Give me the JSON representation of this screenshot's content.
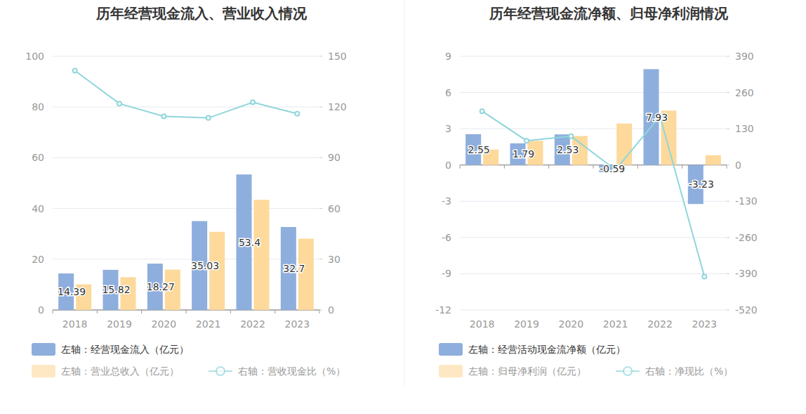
{
  "chart_data": [
    {
      "type": "bar",
      "title": "历年经营现金流入、营业收入情况",
      "categories": [
        "2018",
        "2019",
        "2020",
        "2021",
        "2022",
        "2023"
      ],
      "series": [
        {
          "name": "左轴：经营现金流入（亿元）",
          "color": "#8eaedd",
          "values": [
            14.39,
            15.82,
            18.27,
            35.03,
            53.4,
            32.7
          ],
          "data_labels": true
        },
        {
          "name": "左轴：营业总收入（亿元）",
          "color": "#fdd99b",
          "values": [
            10.1,
            12.9,
            15.9,
            30.8,
            43.4,
            28.1
          ]
        },
        {
          "name": "右轴：营收现金比（%）",
          "type": "line",
          "axis": "y2",
          "color": "#8fd6dc",
          "marker": "circle",
          "values": [
            141.5,
            122,
            114.5,
            113.5,
            122.8,
            116
          ]
        }
      ],
      "ylim": [
        0,
        100
      ],
      "yticks": [
        0,
        20,
        40,
        60,
        80,
        100
      ],
      "y2lim": [
        0,
        150
      ],
      "y2ticks": [
        0,
        30,
        60,
        90,
        120,
        150
      ],
      "grid": true
    },
    {
      "type": "bar",
      "title": "历年经营现金流净额、归母净利润情况",
      "categories": [
        "2018",
        "2019",
        "2020",
        "2021",
        "2022",
        "2023"
      ],
      "series": [
        {
          "name": "左轴：经营活动现金流净额（亿元）",
          "color": "#8eaedd",
          "values": [
            2.55,
            1.79,
            2.53,
            -0.59,
            7.93,
            -3.23
          ],
          "data_labels": true
        },
        {
          "name": "左轴：归母净利润（亿元）",
          "color": "#fdd99b",
          "values": [
            1.28,
            2.0,
            2.4,
            3.43,
            4.5,
            0.81
          ]
        },
        {
          "name": "右轴：净现比（%）",
          "type": "line",
          "axis": "y2",
          "color": "#8fd6dc",
          "marker": "circle",
          "values": [
            193,
            87,
            103,
            -17,
            175,
            -400
          ]
        }
      ],
      "ylim": [
        -12,
        9
      ],
      "yticks": [
        -12,
        -9,
        -6,
        -3,
        0,
        3,
        6,
        9
      ],
      "y2lim": [
        -520,
        390
      ],
      "y2ticks": [
        -520,
        -390,
        -260,
        -130,
        0,
        130,
        260,
        390
      ],
      "grid": true
    }
  ]
}
